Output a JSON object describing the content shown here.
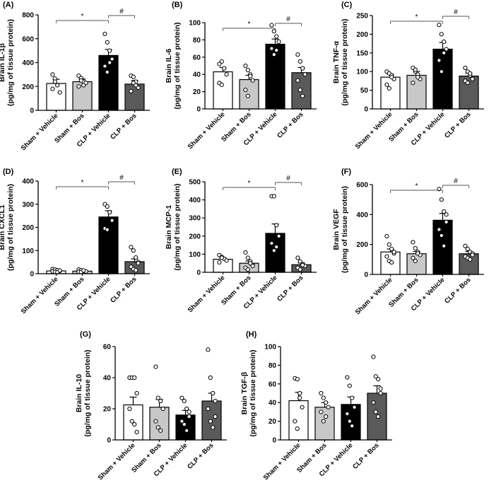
{
  "colors": {
    "sham_vehicle": "#ffffff",
    "sham_bos": "#c8c8c8",
    "clp_vehicle": "#000000",
    "clp_bos": "#5a5a5a",
    "axis": "#000000"
  },
  "categories": [
    "Sham + Vehicle",
    "Sham + Bos",
    "CLP + Vehicle",
    "CLP + Bos"
  ],
  "chart_data": [
    {
      "panel": "(A)",
      "type": "bar",
      "ylabel1": "Brain IL-1β",
      "ylabel2": "(pg/mg of tissue protein)",
      "ylim": [
        0,
        800
      ],
      "yticks": [
        0,
        200,
        400,
        600,
        800
      ],
      "categories": [
        "Sham + Vehicle",
        "Sham + Bos",
        "CLP + Vehicle",
        "CLP + Bos"
      ],
      "values": [
        225,
        240,
        460,
        220
      ],
      "sem": [
        35,
        22,
        50,
        30
      ],
      "points": [
        [
          300,
          265,
          210,
          150,
          180,
          240
        ],
        [
          290,
          270,
          240,
          230,
          200,
          250,
          210
        ],
        [
          640,
          570,
          500,
          430,
          370,
          320,
          400
        ],
        [
          290,
          280,
          240,
          190,
          160,
          230,
          210
        ]
      ],
      "sig": [
        {
          "from": 0,
          "to": 2,
          "label": "*"
        },
        {
          "from": 2,
          "to": 3,
          "label": "#"
        }
      ]
    },
    {
      "panel": "(B)",
      "type": "bar",
      "ylabel1": "Brain IL-6",
      "ylabel2": "(pg/mg of tissue protein)",
      "ylim": [
        0,
        100
      ],
      "yticks": [
        0,
        20,
        40,
        60,
        80,
        100
      ],
      "categories": [
        "Sham + Vehicle",
        "Sham + Bos",
        "CLP + Vehicle",
        "CLP + Bos"
      ],
      "values": [
        43,
        34,
        75,
        42
      ],
      "sem": [
        5,
        5,
        6,
        6
      ],
      "points": [
        [
          52,
          55,
          47,
          40,
          30,
          28
        ],
        [
          50,
          45,
          40,
          33,
          22,
          15,
          38
        ],
        [
          97,
          90,
          84,
          78,
          70,
          63,
          68
        ],
        [
          63,
          55,
          47,
          40,
          33,
          22,
          15
        ]
      ],
      "sig": [
        {
          "from": 0,
          "to": 2,
          "label": "*"
        },
        {
          "from": 2,
          "to": 3,
          "label": "#"
        }
      ]
    },
    {
      "panel": "(C)",
      "type": "bar",
      "ylabel1": "Brain TNF-α",
      "ylabel2": "(pg/mg of tissue protein)",
      "ylim": [
        0,
        250
      ],
      "yticks": [
        0,
        50,
        100,
        150,
        200,
        250
      ],
      "categories": [
        "Sham + Vehicle",
        "Sham + Bos",
        "CLP + Vehicle",
        "CLP + Bos"
      ],
      "values": [
        85,
        90,
        160,
        88
      ],
      "sem": [
        8,
        10,
        18,
        8
      ],
      "points": [
        [
          100,
          95,
          90,
          80,
          65,
          55,
          85
        ],
        [
          110,
          100,
          92,
          80,
          70,
          105,
          85
        ],
        [
          225,
          200,
          180,
          160,
          130,
          100,
          150
        ],
        [
          110,
          100,
          90,
          80,
          75,
          70,
          95
        ]
      ],
      "sig": [
        {
          "from": 0,
          "to": 2,
          "label": "*"
        },
        {
          "from": 2,
          "to": 3,
          "label": "#"
        }
      ]
    },
    {
      "panel": "(D)",
      "type": "bar",
      "ylabel1": "Brain CXCL1",
      "ylabel2": "(pg/mg of tissue protein)",
      "ylim": [
        0,
        400
      ],
      "yticks": [
        0,
        100,
        200,
        300,
        400
      ],
      "categories": [
        "Sham + Vehicle",
        "Sham + Bos",
        "CLP + Vehicle",
        "CLP + Bos"
      ],
      "values": [
        12,
        11,
        245,
        52
      ],
      "sem": [
        3,
        3,
        27,
        12
      ],
      "points": [
        [
          20,
          18,
          15,
          12,
          10,
          8,
          6,
          14
        ],
        [
          18,
          15,
          12,
          10,
          8,
          7,
          14
        ],
        [
          300,
          290,
          265,
          230,
          195,
          190
        ],
        [
          115,
          100,
          70,
          50,
          30,
          20,
          15,
          45
        ]
      ],
      "sig": [
        {
          "from": 0,
          "to": 2,
          "label": "*"
        },
        {
          "from": 2,
          "to": 3,
          "label": "#"
        }
      ]
    },
    {
      "panel": "(E)",
      "type": "bar",
      "ylabel1": "Brain MCP-1",
      "ylabel2": "(pg/mg of tissue protein)",
      "ylim": [
        0,
        500
      ],
      "yticks": [
        0,
        100,
        200,
        300,
        400,
        500
      ],
      "categories": [
        "Sham + Vehicle",
        "Sham + Bos",
        "CLP + Vehicle",
        "CLP + Bos"
      ],
      "values": [
        72,
        50,
        215,
        42
      ],
      "sem": [
        8,
        12,
        52,
        10
      ],
      "points": [
        [
          95,
          85,
          75,
          65,
          55,
          80
        ],
        [
          110,
          80,
          60,
          40,
          25,
          15,
          50,
          35
        ],
        [
          420,
          420,
          260,
          200,
          160,
          120,
          140
        ],
        [
          80,
          60,
          45,
          35,
          25,
          15,
          40
        ]
      ],
      "sig": [
        {
          "from": 0,
          "to": 2,
          "label": "*"
        },
        {
          "from": 2,
          "to": 3,
          "label": "#"
        }
      ]
    },
    {
      "panel": "(F)",
      "type": "bar",
      "ylabel1": "Brain VEGF",
      "ylabel2": "(pg/mg of tissue protein)",
      "ylim": [
        0,
        600
      ],
      "yticks": [
        0,
        200,
        400,
        600
      ],
      "categories": [
        "Sham + Vehicle",
        "Sham + Bos",
        "CLP + Vehicle",
        "CLP + Bos"
      ],
      "values": [
        150,
        138,
        362,
        138
      ],
      "sem": [
        20,
        15,
        45,
        15
      ],
      "points": [
        [
          255,
          200,
          170,
          140,
          120,
          90,
          80,
          150
        ],
        [
          215,
          175,
          150,
          130,
          110,
          90,
          140
        ],
        [
          570,
          500,
          420,
          350,
          300,
          260,
          190,
          400
        ],
        [
          190,
          170,
          150,
          140,
          120,
          110,
          100,
          130
        ]
      ],
      "sig": [
        {
          "from": 0,
          "to": 2,
          "label": "*"
        },
        {
          "from": 2,
          "to": 3,
          "label": "#"
        }
      ]
    },
    {
      "panel": "(G)",
      "type": "bar",
      "ylabel1": "Brain IL-10",
      "ylabel2": "(pg/mg of tissue protein)",
      "ylim": [
        0,
        60
      ],
      "yticks": [
        0,
        20,
        40,
        60
      ],
      "categories": [
        "Sham + Vehicle",
        "Sham + Bos",
        "CLP + Vehicle",
        "CLP + Bos"
      ],
      "values": [
        22.5,
        21,
        16,
        25
      ],
      "sem": [
        5,
        5,
        3,
        5
      ],
      "points": [
        [
          40,
          40,
          40,
          30,
          20,
          12,
          10,
          5
        ],
        [
          47,
          27,
          25,
          20,
          12,
          8,
          6
        ],
        [
          27,
          25,
          20,
          15,
          12,
          10,
          6,
          18
        ],
        [
          58,
          40,
          30,
          25,
          20,
          12,
          8,
          15
        ]
      ],
      "sig": []
    },
    {
      "panel": "(H)",
      "type": "bar",
      "ylabel1": "Brain TGF-β",
      "ylabel2": "(pg/mg of tissue protein)",
      "ylim": [
        0,
        100
      ],
      "yticks": [
        0,
        20,
        40,
        60,
        80,
        100
      ],
      "categories": [
        "Sham + Vehicle",
        "Sham + Bos",
        "CLP + Vehicle",
        "CLP + Bos"
      ],
      "values": [
        42,
        35,
        38,
        50
      ],
      "sem": [
        9,
        5,
        8,
        8
      ],
      "points": [
        [
          66,
          65,
          50,
          35,
          20,
          12,
          45
        ],
        [
          50,
          45,
          40,
          35,
          30,
          20,
          25
        ],
        [
          67,
          58,
          45,
          35,
          28,
          20,
          15
        ],
        [
          89,
          68,
          65,
          50,
          40,
          30,
          25,
          55
        ]
      ],
      "sig": []
    }
  ]
}
